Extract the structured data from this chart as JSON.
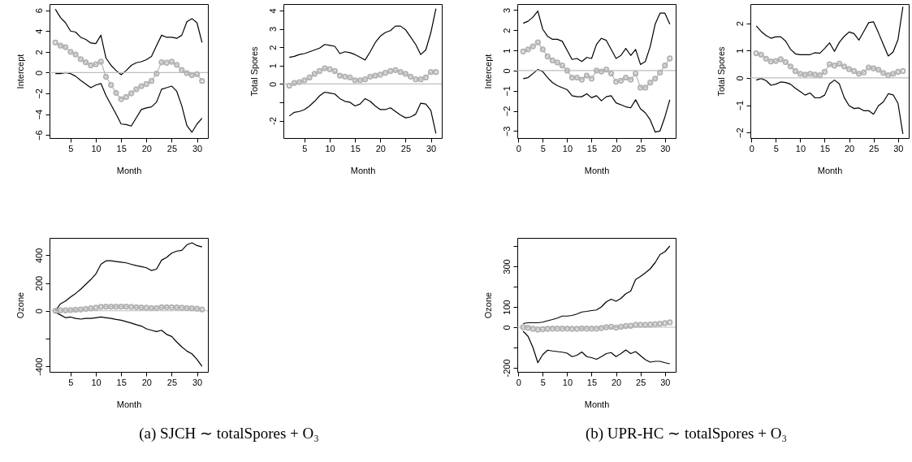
{
  "chart_data": [
    {
      "type": "line",
      "xlabel": "Month",
      "ylabel": "Intercept",
      "x": [
        2,
        3,
        4,
        5,
        6,
        7,
        8,
        9,
        10,
        11,
        12,
        13,
        14,
        15,
        16,
        17,
        18,
        19,
        20,
        21,
        22,
        23,
        24,
        25,
        26,
        27,
        28,
        29,
        30,
        31
      ],
      "xlim": [
        0.84,
        32.16
      ],
      "xticks": [
        5,
        10,
        15,
        20,
        25,
        30
      ],
      "ylim": [
        -6.3,
        6.6
      ],
      "yticks": [
        -6,
        -4,
        -2,
        0,
        2,
        4,
        6
      ],
      "ref_lines": [
        {
          "axis": "y",
          "value": 0,
          "color": "#bebebe"
        }
      ],
      "series": [
        {
          "color": "#000000",
          "marker": "none",
          "values": [
            6.1,
            5.3,
            4.8,
            4.0,
            3.9,
            3.4,
            3.2,
            2.85,
            2.8,
            3.6,
            1.4,
            0.7,
            0.2,
            -0.2,
            0.2,
            0.7,
            0.95,
            1.05,
            1.25,
            1.55,
            2.6,
            3.6,
            3.4,
            3.4,
            3.3,
            3.6,
            4.9,
            5.2,
            4.8,
            2.9
          ]
        },
        {
          "color": "#000000",
          "marker": "none",
          "values": [
            -0.1,
            -0.1,
            0,
            -0.1,
            -0.35,
            -0.75,
            -1.1,
            -1.45,
            -1.2,
            -1.05,
            -2.2,
            -3.1,
            -4.0,
            -4.95,
            -5.0,
            -5.15,
            -4.35,
            -3.55,
            -3.4,
            -3.3,
            -2.85,
            -1.6,
            -1.45,
            -1.3,
            -1.8,
            -3.2,
            -5.1,
            -5.75,
            -4.95,
            -4.4
          ]
        },
        {
          "color": "#b3b3b3",
          "marker": "circle",
          "values": [
            2.9,
            2.6,
            2.45,
            2.0,
            1.75,
            1.3,
            1.0,
            0.7,
            0.8,
            1.05,
            -0.4,
            -1.2,
            -1.95,
            -2.55,
            -2.35,
            -2.0,
            -1.6,
            -1.3,
            -1.1,
            -0.8,
            -0.1,
            1.0,
            0.95,
            1.05,
            0.75,
            0.25,
            -0.05,
            -0.25,
            -0.15,
            -0.8
          ]
        }
      ]
    },
    {
      "type": "line",
      "xlabel": "Month",
      "ylabel": "Total Spores",
      "x": [
        2,
        3,
        4,
        5,
        6,
        7,
        8,
        9,
        10,
        11,
        12,
        13,
        14,
        15,
        16,
        17,
        18,
        19,
        20,
        21,
        22,
        23,
        24,
        25,
        26,
        27,
        28,
        29,
        30,
        31
      ],
      "xlim": [
        0.84,
        32.16
      ],
      "xticks": [
        5,
        10,
        15,
        20,
        25,
        30
      ],
      "ylim": [
        -2.95,
        4.35
      ],
      "yticks": [
        {
          "value": -2,
          "label": "-2"
        },
        {
          "value": -1,
          "label": null
        },
        0,
        1,
        2,
        3,
        4
      ],
      "ref_lines": [
        {
          "axis": "y",
          "value": 0,
          "color": "#bebebe"
        }
      ],
      "series": [
        {
          "color": "#000000",
          "marker": "none",
          "values": [
            1.45,
            1.5,
            1.6,
            1.65,
            1.75,
            1.85,
            1.95,
            2.15,
            2.1,
            2.05,
            1.65,
            1.75,
            1.7,
            1.6,
            1.45,
            1.3,
            1.75,
            2.25,
            2.6,
            2.8,
            2.9,
            3.15,
            3.15,
            2.95,
            2.55,
            2.15,
            1.6,
            1.85,
            2.8,
            4.1
          ]
        },
        {
          "color": "#000000",
          "marker": "none",
          "values": [
            -1.75,
            -1.55,
            -1.5,
            -1.4,
            -1.2,
            -0.95,
            -0.65,
            -0.45,
            -0.5,
            -0.55,
            -0.8,
            -0.95,
            -1.0,
            -1.2,
            -1.1,
            -0.8,
            -0.95,
            -1.2,
            -1.4,
            -1.4,
            -1.3,
            -1.5,
            -1.7,
            -1.85,
            -1.8,
            -1.65,
            -1.05,
            -1.1,
            -1.45,
            -2.7
          ]
        },
        {
          "color": "#b3b3b3",
          "marker": "circle",
          "values": [
            -0.1,
            0.05,
            0.1,
            0.2,
            0.35,
            0.55,
            0.7,
            0.85,
            0.8,
            0.7,
            0.45,
            0.4,
            0.35,
            0.2,
            0.2,
            0.25,
            0.4,
            0.45,
            0.5,
            0.6,
            0.7,
            0.75,
            0.65,
            0.55,
            0.4,
            0.25,
            0.25,
            0.35,
            0.65,
            0.65
          ]
        }
      ]
    },
    {
      "type": "line",
      "xlabel": "Month",
      "ylabel": "Intercept",
      "x": [
        1,
        2,
        3,
        4,
        5,
        6,
        7,
        8,
        9,
        10,
        11,
        12,
        13,
        14,
        15,
        16,
        17,
        18,
        19,
        20,
        21,
        22,
        23,
        24,
        25,
        26,
        27,
        28,
        29,
        30,
        31
      ],
      "xlim": [
        -0.2,
        32.2
      ],
      "xticks": [
        0,
        5,
        10,
        15,
        20,
        25,
        30
      ],
      "ylim": [
        -3.35,
        3.3
      ],
      "yticks": [
        -3,
        -2,
        -1,
        0,
        1,
        2,
        3
      ],
      "ref_lines": [
        {
          "axis": "y",
          "value": 0,
          "color": "#bebebe"
        }
      ],
      "series": [
        {
          "color": "#000000",
          "marker": "none",
          "values": [
            2.35,
            2.45,
            2.65,
            2.95,
            2.05,
            1.7,
            1.55,
            1.55,
            1.45,
            1.0,
            0.55,
            0.6,
            0.45,
            0.65,
            0.6,
            1.3,
            1.6,
            1.5,
            1.05,
            0.6,
            0.75,
            1.1,
            0.75,
            1.05,
            0.3,
            0.45,
            1.2,
            2.3,
            2.85,
            2.85,
            2.3
          ]
        },
        {
          "color": "#000000",
          "marker": "none",
          "values": [
            -0.4,
            -0.35,
            -0.15,
            0.05,
            -0.05,
            -0.35,
            -0.6,
            -0.75,
            -0.85,
            -0.95,
            -1.25,
            -1.3,
            -1.3,
            -1.15,
            -1.35,
            -1.25,
            -1.5,
            -1.3,
            -1.25,
            -1.6,
            -1.7,
            -1.8,
            -1.85,
            -1.45,
            -1.9,
            -2.1,
            -2.45,
            -3.05,
            -3.0,
            -2.3,
            -1.45
          ]
        },
        {
          "color": "#b3b3b3",
          "marker": "circle",
          "values": [
            0.95,
            1.05,
            1.2,
            1.4,
            1.05,
            0.7,
            0.5,
            0.4,
            0.25,
            0.0,
            -0.35,
            -0.35,
            -0.45,
            -0.25,
            -0.4,
            0.0,
            -0.05,
            0.05,
            -0.15,
            -0.55,
            -0.5,
            -0.35,
            -0.45,
            -0.15,
            -0.85,
            -0.85,
            -0.6,
            -0.4,
            -0.1,
            0.25,
            0.6
          ]
        }
      ]
    },
    {
      "type": "line",
      "xlabel": "Month",
      "ylabel": "Total Spores",
      "x": [
        1,
        2,
        3,
        4,
        5,
        6,
        7,
        8,
        9,
        10,
        11,
        12,
        13,
        14,
        15,
        16,
        17,
        18,
        19,
        20,
        21,
        22,
        23,
        24,
        25,
        26,
        27,
        28,
        29,
        30,
        31
      ],
      "xlim": [
        -0.2,
        32.2
      ],
      "xticks": [
        0,
        5,
        10,
        15,
        20,
        25,
        30
      ],
      "ylim": [
        -2.2,
        2.7
      ],
      "yticks": [
        -2,
        -1,
        0,
        1,
        2
      ],
      "ref_lines": [
        {
          "axis": "y",
          "value": 0,
          "color": "#bebebe"
        }
      ],
      "series": [
        {
          "color": "#000000",
          "marker": "none",
          "values": [
            1.9,
            1.7,
            1.55,
            1.45,
            1.5,
            1.5,
            1.35,
            1.05,
            0.88,
            0.85,
            0.85,
            0.85,
            0.92,
            0.9,
            1.08,
            1.28,
            0.97,
            1.3,
            1.52,
            1.68,
            1.62,
            1.38,
            1.7,
            2.02,
            2.05,
            1.65,
            1.22,
            0.8,
            0.95,
            1.4,
            2.6
          ]
        },
        {
          "color": "#000000",
          "marker": "none",
          "values": [
            -0.08,
            -0.02,
            -0.1,
            -0.27,
            -0.23,
            -0.15,
            -0.17,
            -0.23,
            -0.38,
            -0.5,
            -0.63,
            -0.55,
            -0.73,
            -0.73,
            -0.63,
            -0.22,
            -0.08,
            -0.22,
            -0.72,
            -1.02,
            -1.12,
            -1.1,
            -1.2,
            -1.2,
            -1.33,
            -1.02,
            -0.88,
            -0.58,
            -0.62,
            -0.93,
            -2.05
          ]
        },
        {
          "color": "#b3b3b3",
          "marker": "circle",
          "values": [
            0.9,
            0.85,
            0.7,
            0.6,
            0.62,
            0.68,
            0.58,
            0.42,
            0.25,
            0.15,
            0.12,
            0.15,
            0.12,
            0.1,
            0.22,
            0.5,
            0.45,
            0.52,
            0.42,
            0.32,
            0.25,
            0.15,
            0.2,
            0.38,
            0.35,
            0.3,
            0.18,
            0.1,
            0.15,
            0.22,
            0.25
          ]
        }
      ]
    },
    {
      "type": "line",
      "xlabel": "Month",
      "ylabel": "Ozone",
      "annotations": [
        "(a) SJCH ∼ totalSpores + O₃"
      ],
      "x": [
        2,
        3,
        4,
        5,
        6,
        7,
        8,
        9,
        10,
        11,
        12,
        13,
        14,
        15,
        16,
        17,
        18,
        19,
        20,
        21,
        22,
        23,
        24,
        25,
        26,
        27,
        28,
        29,
        30,
        31
      ],
      "xlim": [
        0.84,
        32.16
      ],
      "xticks": [
        5,
        10,
        15,
        20,
        25,
        30
      ],
      "ylim": [
        -440,
        525
      ],
      "yticks": [
        {
          "value": -400,
          "label": "-400"
        },
        {
          "value": -200,
          "label": null
        },
        0,
        200,
        400
      ],
      "ref_lines": [
        {
          "axis": "y",
          "value": 0,
          "color": "#bebebe"
        }
      ],
      "series": [
        {
          "color": "#000000",
          "marker": "none",
          "values": [
            0,
            50,
            70,
            100,
            125,
            155,
            190,
            225,
            265,
            335,
            360,
            360,
            355,
            350,
            345,
            335,
            325,
            318,
            310,
            290,
            300,
            365,
            385,
            415,
            430,
            435,
            475,
            490,
            470,
            460
          ]
        },
        {
          "color": "#000000",
          "marker": "none",
          "values": [
            -10,
            -30,
            -50,
            -45,
            -55,
            -60,
            -55,
            -55,
            -50,
            -45,
            -50,
            -55,
            -62,
            -68,
            -78,
            -88,
            -100,
            -110,
            -130,
            -140,
            -150,
            -140,
            -170,
            -185,
            -225,
            -260,
            -290,
            -310,
            -350,
            -400
          ]
        },
        {
          "color": "#b3b3b3",
          "marker": "circle",
          "values": [
            0,
            3,
            3,
            5,
            8,
            10,
            14,
            18,
            22,
            28,
            30,
            30,
            30,
            30,
            30,
            28,
            26,
            24,
            22,
            20,
            20,
            26,
            26,
            25,
            24,
            22,
            20,
            18,
            15,
            10
          ]
        }
      ]
    },
    {
      "type": "line",
      "xlabel": "Month",
      "ylabel": "Ozone",
      "annotations": [
        "(b) UPR-HC ∼ totalSpores + O₃"
      ],
      "x": [
        1,
        2,
        3,
        4,
        5,
        6,
        7,
        8,
        9,
        10,
        11,
        12,
        13,
        14,
        15,
        16,
        17,
        18,
        19,
        20,
        21,
        22,
        23,
        24,
        25,
        26,
        27,
        28,
        29,
        30,
        31
      ],
      "xlim": [
        -0.2,
        32.2
      ],
      "xticks": [
        0,
        5,
        10,
        15,
        20,
        25,
        30
      ],
      "ylim": [
        -220,
        440
      ],
      "yticks": [
        {
          "value": -200,
          "label": "-200"
        },
        {
          "value": -100,
          "label": null
        },
        0,
        100,
        {
          "value": 200,
          "label": null
        },
        300,
        {
          "value": 400,
          "label": null
        }
      ],
      "ref_lines": [
        {
          "axis": "y",
          "value": 0,
          "color": "#bebebe"
        }
      ],
      "series": [
        {
          "color": "#000000",
          "marker": "none",
          "values": [
            18,
            22,
            22,
            22,
            25,
            32,
            38,
            45,
            55,
            55,
            58,
            65,
            75,
            78,
            82,
            85,
            100,
            125,
            138,
            128,
            142,
            165,
            178,
            235,
            250,
            268,
            288,
            318,
            358,
            372,
            400
          ]
        },
        {
          "color": "#000000",
          "marker": "none",
          "values": [
            -20,
            -45,
            -100,
            -175,
            -135,
            -113,
            -117,
            -120,
            -123,
            -128,
            -145,
            -138,
            -122,
            -145,
            -150,
            -158,
            -145,
            -130,
            -125,
            -145,
            -130,
            -112,
            -130,
            -120,
            -140,
            -160,
            -172,
            -168,
            -168,
            -175,
            -180
          ]
        },
        {
          "color": "#b3b3b3",
          "marker": "circle",
          "values": [
            0,
            -3,
            -8,
            -12,
            -10,
            -8,
            -7,
            -7,
            -7,
            -7,
            -8,
            -8,
            -6,
            -7,
            -7,
            -7,
            -4,
            0,
            2,
            -2,
            2,
            6,
            7,
            12,
            12,
            12,
            13,
            15,
            17,
            20,
            24
          ]
        }
      ]
    }
  ]
}
